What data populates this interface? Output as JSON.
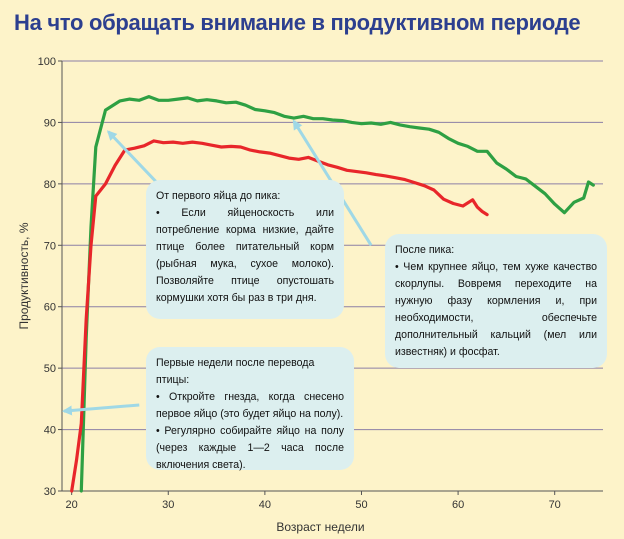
{
  "title": "На что обращать внимание в продуктивном периоде",
  "colors": {
    "green_series": "#2ea043",
    "red_series": "#e8262a",
    "title": "#2c3f8f",
    "callout_bg": "#dcefef",
    "arrow": "#9fd8e6"
  },
  "chart_data": {
    "type": "line",
    "xlabel": "Возраст недели",
    "ylabel": "Продуктивность, %",
    "xlim": [
      19,
      75
    ],
    "ylim": [
      30,
      100
    ],
    "xticks": [
      20,
      30,
      40,
      50,
      60,
      70
    ],
    "yticks": [
      30,
      40,
      50,
      60,
      70,
      80,
      90,
      100
    ],
    "grid": "horizontal",
    "series": [
      {
        "color": "#2ea043",
        "points": [
          [
            21,
            30
          ],
          [
            21.5,
            55
          ],
          [
            22,
            73
          ],
          [
            22.5,
            86
          ],
          [
            23.5,
            92
          ],
          [
            25,
            93.5
          ],
          [
            26,
            93.8
          ],
          [
            27,
            93.6
          ],
          [
            28,
            94.2
          ],
          [
            29,
            93.6
          ],
          [
            30,
            93.6
          ],
          [
            31,
            93.8
          ],
          [
            32,
            94.0
          ],
          [
            33,
            93.5
          ],
          [
            34,
            93.7
          ],
          [
            35,
            93.5
          ],
          [
            36,
            93.2
          ],
          [
            37,
            93.3
          ],
          [
            38,
            92.8
          ],
          [
            39,
            92.1
          ],
          [
            40,
            91.9
          ],
          [
            41,
            91.6
          ],
          [
            42,
            91.0
          ],
          [
            43,
            90.7
          ],
          [
            44,
            91.0
          ],
          [
            45,
            90.6
          ],
          [
            46,
            90.6
          ],
          [
            47,
            90.4
          ],
          [
            48,
            90.3
          ],
          [
            49,
            90.0
          ],
          [
            50,
            89.8
          ],
          [
            51,
            89.9
          ],
          [
            52,
            89.7
          ],
          [
            53,
            90.0
          ],
          [
            54,
            89.6
          ],
          [
            55,
            89.3
          ],
          [
            56,
            89.1
          ],
          [
            57,
            88.9
          ],
          [
            58,
            88.4
          ],
          [
            59,
            87.4
          ],
          [
            60,
            86.6
          ],
          [
            61,
            86.1
          ],
          [
            62,
            85.3
          ],
          [
            63,
            85.3
          ],
          [
            64,
            83.4
          ],
          [
            65,
            82.4
          ],
          [
            66,
            81.2
          ],
          [
            67,
            80.8
          ],
          [
            68,
            79.6
          ],
          [
            69,
            78.4
          ],
          [
            70,
            76.7
          ],
          [
            71,
            75.3
          ],
          [
            72,
            77.0
          ],
          [
            73,
            77.7
          ],
          [
            73.5,
            80.3
          ],
          [
            74,
            79.8
          ]
        ]
      },
      {
        "color": "#e8262a",
        "points": [
          [
            20,
            30
          ],
          [
            20.5,
            35
          ],
          [
            21,
            41
          ],
          [
            21.5,
            58
          ],
          [
            22,
            70
          ],
          [
            22.5,
            78
          ],
          [
            23.5,
            80
          ],
          [
            24.5,
            83
          ],
          [
            25.5,
            85.5
          ],
          [
            26.5,
            85.8
          ],
          [
            27.5,
            86.2
          ],
          [
            28.5,
            87.0
          ],
          [
            29.5,
            86.7
          ],
          [
            30.5,
            86.8
          ],
          [
            31.5,
            86.6
          ],
          [
            32.5,
            86.8
          ],
          [
            33.5,
            86.6
          ],
          [
            34.5,
            86.3
          ],
          [
            35.5,
            86.0
          ],
          [
            36.5,
            86.1
          ],
          [
            37.5,
            86.0
          ],
          [
            38.5,
            85.5
          ],
          [
            39.5,
            85.2
          ],
          [
            40.5,
            85.0
          ],
          [
            41.5,
            84.6
          ],
          [
            42.5,
            84.2
          ],
          [
            43.5,
            84.0
          ],
          [
            44.5,
            84.3
          ],
          [
            45.5,
            83.7
          ],
          [
            46.5,
            83.1
          ],
          [
            47.5,
            82.7
          ],
          [
            48.5,
            82.2
          ],
          [
            49.5,
            82.0
          ],
          [
            50.5,
            81.8
          ],
          [
            51.5,
            81.5
          ],
          [
            52.5,
            81.3
          ],
          [
            53.5,
            81.0
          ],
          [
            54.5,
            80.7
          ],
          [
            55.5,
            80.2
          ],
          [
            56.5,
            79.7
          ],
          [
            57.5,
            79.0
          ],
          [
            58.5,
            77.5
          ],
          [
            59.5,
            76.8
          ],
          [
            60.5,
            76.4
          ],
          [
            61.5,
            77.4
          ],
          [
            62,
            76.2
          ],
          [
            62.5,
            75.5
          ],
          [
            63,
            75.0
          ]
        ]
      }
    ]
  },
  "callouts": {
    "peak": {
      "heading": "От первого яйца до пика:",
      "item1": "• Если яйценоскость или потребление корма низкие, дайте птице более питательный корм (рыбная мука, сухое молоко). Позволяйте птице опустошать кормушки хотя бы раз в три дня."
    },
    "after_peak": {
      "heading": "После пика:",
      "item1": "• Чем крупнее яйцо, тем хуже качество скорлупы. Вовремя переходите на нужную фазу кормления и, при необходимости, обеспечьте дополнительный кальций (мел или известняк) и фосфат."
    },
    "first_weeks": {
      "heading": "Первые недели после перевода птицы:",
      "item1": "• Откройте гнезда, когда снесено первое яйцо (это будет яйцо на полу).",
      "item2": "• Регулярно собирайте яйцо на полу (через каждые 1—2 часа после включения света)."
    }
  },
  "arrows": [
    {
      "name": "arrow-to-green-peak",
      "from": [
        35,
        70
      ],
      "to": [
        23.8,
        88.5
      ]
    },
    {
      "name": "arrow-to-green-after-peak",
      "from": [
        51,
        70
      ],
      "to": [
        43,
        90.2
      ]
    },
    {
      "name": "arrow-to-y-axis",
      "from": [
        27,
        44
      ],
      "to": [
        19.2,
        43
      ]
    }
  ]
}
